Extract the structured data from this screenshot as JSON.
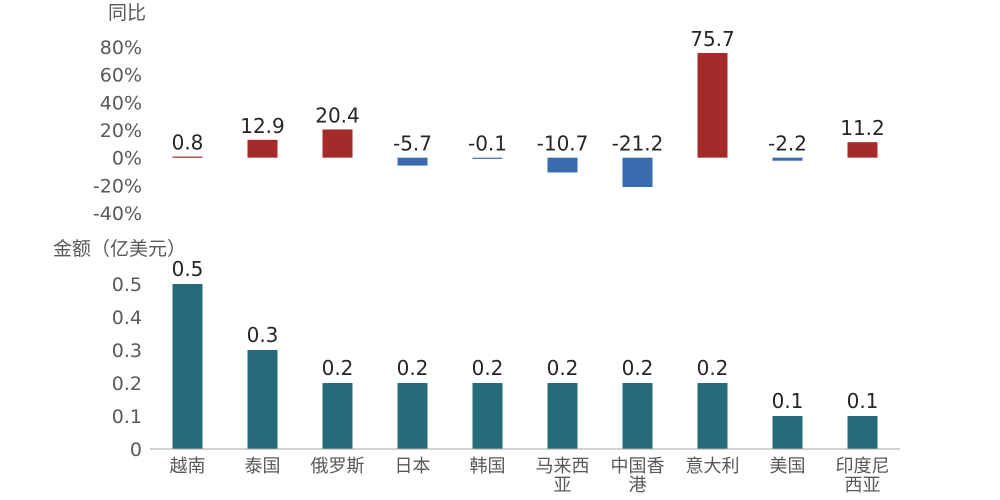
{
  "chart_data": [
    {
      "type": "bar",
      "ylabel": "同比",
      "unit": "%",
      "categories": [
        "越南",
        "泰国",
        "俄罗斯",
        "日本",
        "韩国",
        "马来西亚",
        "中国香港",
        "意大利",
        "美国",
        "印度尼西亚"
      ],
      "values": [
        0.8,
        12.9,
        20.4,
        -5.7,
        -0.1,
        -10.7,
        -21.2,
        75.7,
        -2.2,
        11.2
      ],
      "data_labels": [
        "0.8",
        "12.9",
        "20.4",
        "-5.7",
        "-0.1",
        "-10.7",
        "-21.2",
        "75.7",
        "-2.2",
        "11.2"
      ],
      "yticks": [
        "-40%",
        "-20%",
        "0%",
        "20%",
        "40%",
        "60%",
        "80%"
      ],
      "ylim": [
        -40,
        80
      ],
      "colors": {
        "positive": "#a52a2a",
        "negative": "#3a6baf"
      }
    },
    {
      "type": "bar",
      "ylabel": "金额（亿美元）",
      "categories": [
        "越南",
        "泰国",
        "俄罗斯",
        "日本",
        "韩国",
        "马来西亚",
        "中国香港",
        "意大利",
        "美国",
        "印度尼西亚"
      ],
      "category_lines": [
        [
          "越南"
        ],
        [
          "泰国"
        ],
        [
          "俄罗斯"
        ],
        [
          "日本"
        ],
        [
          "韩国"
        ],
        [
          "马来西",
          "亚"
        ],
        [
          "中国香",
          "港"
        ],
        [
          "意大利"
        ],
        [
          "美国"
        ],
        [
          "印度尼",
          "西亚"
        ]
      ],
      "values": [
        0.5,
        0.3,
        0.2,
        0.2,
        0.2,
        0.2,
        0.2,
        0.2,
        0.1,
        0.1
      ],
      "data_labels": [
        "0.5",
        "0.3",
        "0.2",
        "0.2",
        "0.2",
        "0.2",
        "0.2",
        "0.2",
        "0.1",
        "0.1"
      ],
      "yticks": [
        "0",
        "0.1",
        "0.2",
        "0.3",
        "0.4",
        "0.5"
      ],
      "ylim": [
        0,
        0.5
      ],
      "colors": {
        "bar": "#266b7a"
      }
    }
  ]
}
